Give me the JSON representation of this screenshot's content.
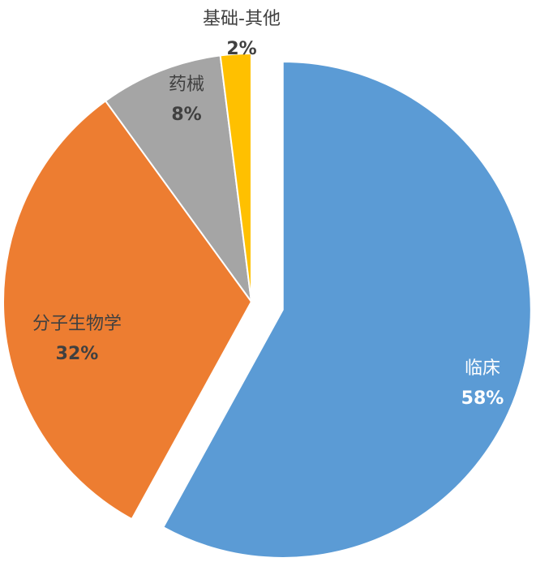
{
  "chart_data": {
    "type": "pie",
    "categories": [
      "临床",
      "分子生物学",
      "药械",
      "基础-其他"
    ],
    "values": [
      58,
      32,
      8,
      2
    ],
    "value_labels": [
      "58%",
      "32%",
      "8%",
      "2%"
    ],
    "colors": [
      "#5b9bd5",
      "#ed7d31",
      "#a5a5a5",
      "#ffc000"
    ]
  }
}
